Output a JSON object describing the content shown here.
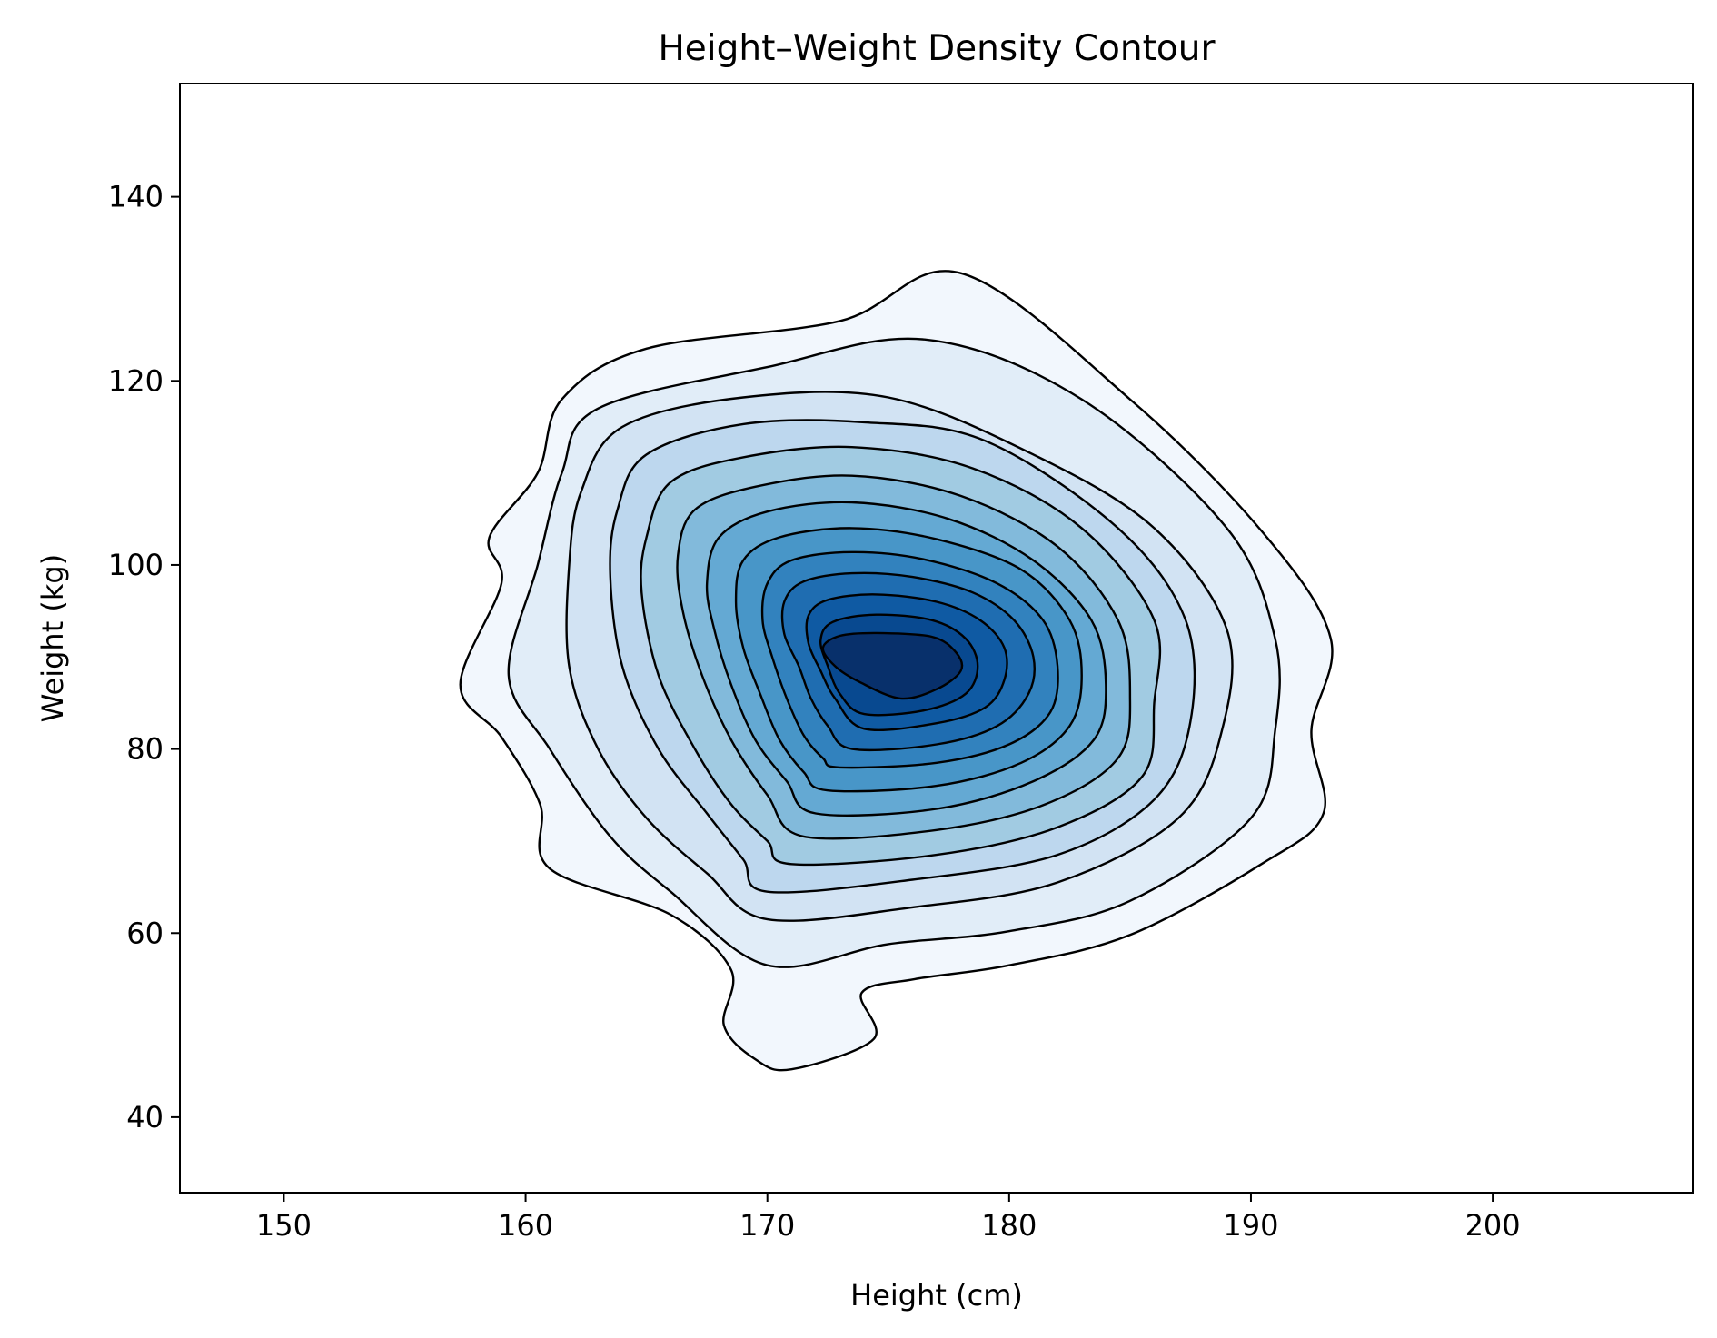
{
  "chart_data": {
    "type": "contour",
    "title": "Height–Weight Density Contour",
    "xlabel": "Height (cm)",
    "ylabel": "Weight (kg)",
    "xlim": [
      145.7,
      208.3
    ],
    "ylim": [
      31.8,
      152.3
    ],
    "xticks": [
      150,
      160,
      170,
      180,
      190,
      200
    ],
    "yticks": [
      40,
      60,
      80,
      100,
      120,
      140
    ],
    "grid": false,
    "legend": "none",
    "colormap": "Blues",
    "line_color": "#000000",
    "fill_colors": [
      "#f2f7fd",
      "#e1edf8",
      "#d2e3f3",
      "#bdd7ee",
      "#a1cbe2",
      "#82badb",
      "#64a9d3",
      "#4896c8",
      "#3282be",
      "#1f6db1",
      "#0f5aa3",
      "#084990",
      "#08306b"
    ],
    "peak": {
      "x": 174.6,
      "y": 89.9
    },
    "levels": [
      {
        "level": 1,
        "outline": [
          [
            171,
            45.2
          ],
          [
            174.4,
            48.5
          ],
          [
            173.9,
            53.5
          ],
          [
            176.1,
            55
          ],
          [
            180,
            56.5
          ],
          [
            185,
            59.8
          ],
          [
            190.5,
            67.6
          ],
          [
            193,
            73
          ],
          [
            192.5,
            82
          ],
          [
            193.3,
            92
          ],
          [
            190.5,
            103.5
          ],
          [
            185,
            118
          ],
          [
            178,
            131.7
          ],
          [
            173,
            126.5
          ],
          [
            165,
            123.5
          ],
          [
            161.5,
            118
          ],
          [
            160.5,
            110
          ],
          [
            158.5,
            103
          ],
          [
            159,
            98
          ],
          [
            157.3,
            87
          ],
          [
            159,
            81.3
          ],
          [
            160.6,
            74
          ],
          [
            161,
            67
          ],
          [
            166,
            62
          ],
          [
            168.5,
            56
          ],
          [
            168.2,
            50
          ],
          [
            169.5,
            46.3
          ]
        ]
      },
      {
        "level": 2,
        "outline": [
          [
            170,
            56.5
          ],
          [
            175,
            58.8
          ],
          [
            180,
            60.2
          ],
          [
            185,
            63.5
          ],
          [
            190,
            72.5
          ],
          [
            191,
            82
          ],
          [
            191,
            92
          ],
          [
            189,
            104
          ],
          [
            183,
            118
          ],
          [
            176.5,
            124.5
          ],
          [
            170,
            121.5
          ],
          [
            163,
            117
          ],
          [
            161.5,
            110
          ],
          [
            160.5,
            100
          ],
          [
            159.3,
            88
          ],
          [
            161,
            80
          ],
          [
            163.5,
            70.5
          ],
          [
            166,
            64.5
          ]
        ]
      },
      {
        "level": 3,
        "outline": [
          [
            170,
            61.5
          ],
          [
            176,
            62.8
          ],
          [
            182,
            65.5
          ],
          [
            187,
            72.5
          ],
          [
            188.8,
            82
          ],
          [
            189,
            93
          ],
          [
            186,
            104
          ],
          [
            181,
            112
          ],
          [
            175,
            118.2
          ],
          [
            169,
            118.2
          ],
          [
            164,
            115
          ],
          [
            162.3,
            108
          ],
          [
            161.8,
            100
          ],
          [
            161.8,
            89
          ],
          [
            163,
            80
          ],
          [
            165,
            72.5
          ],
          [
            167.5,
            66.5
          ]
        ]
      },
      {
        "level": 4,
        "outline": [
          [
            170,
            64.5
          ],
          [
            176,
            65.8
          ],
          [
            182,
            68.5
          ],
          [
            186,
            74.5
          ],
          [
            187.5,
            83
          ],
          [
            187.3,
            94
          ],
          [
            184.5,
            104
          ],
          [
            179,
            113.5
          ],
          [
            174,
            115.5
          ],
          [
            169,
            115.3
          ],
          [
            165,
            112
          ],
          [
            163.8,
            106
          ],
          [
            163.5,
            99
          ],
          [
            164,
            89
          ],
          [
            165.5,
            80
          ],
          [
            167.5,
            73
          ],
          [
            169,
            68
          ]
        ]
      },
      {
        "level": 5,
        "outline": [
          [
            171,
            67.5
          ],
          [
            177,
            68.5
          ],
          [
            182,
            71.5
          ],
          [
            185.5,
            77
          ],
          [
            186,
            85
          ],
          [
            186,
            94
          ],
          [
            183,
            104
          ],
          [
            178.5,
            110.5
          ],
          [
            173.5,
            112.8
          ],
          [
            169,
            111.7
          ],
          [
            166,
            109
          ],
          [
            165,
            103
          ],
          [
            164.8,
            97
          ],
          [
            165.5,
            88
          ],
          [
            167,
            80
          ],
          [
            168.5,
            74
          ],
          [
            170,
            70
          ]
        ]
      },
      {
        "level": 6,
        "outline": [
          [
            171.5,
            70.5
          ],
          [
            177,
            71.2
          ],
          [
            181.5,
            74
          ],
          [
            184.5,
            79
          ],
          [
            185,
            86
          ],
          [
            184.5,
            94
          ],
          [
            182,
            102
          ],
          [
            178,
            107.5
          ],
          [
            173.5,
            109.7
          ],
          [
            169.5,
            108.5
          ],
          [
            167,
            106
          ],
          [
            166.3,
            101
          ],
          [
            166.5,
            95
          ],
          [
            167.3,
            88
          ],
          [
            168.5,
            81
          ],
          [
            170,
            75
          ]
        ]
      },
      {
        "level": 7,
        "outline": [
          [
            172,
            73
          ],
          [
            177,
            73.5
          ],
          [
            181,
            76.5
          ],
          [
            183.5,
            81
          ],
          [
            184,
            87
          ],
          [
            183.4,
            94
          ],
          [
            181,
            100.5
          ],
          [
            177.5,
            105
          ],
          [
            173.5,
            106.8
          ],
          [
            170,
            105.8
          ],
          [
            168,
            103
          ],
          [
            167.5,
            98
          ],
          [
            167.8,
            93
          ],
          [
            168.5,
            87
          ],
          [
            169.5,
            81
          ],
          [
            170.8,
            76.5
          ]
        ]
      },
      {
        "level": 8,
        "outline": [
          [
            172.5,
            75.5
          ],
          [
            177,
            76
          ],
          [
            180.5,
            78.5
          ],
          [
            182.5,
            82.5
          ],
          [
            183,
            88
          ],
          [
            182.5,
            94
          ],
          [
            180.5,
            99.5
          ],
          [
            177,
            102.8
          ],
          [
            173.5,
            104
          ],
          [
            170.5,
            103
          ],
          [
            169,
            100.5
          ],
          [
            168.7,
            96
          ],
          [
            169,
            91
          ],
          [
            169.7,
            86
          ],
          [
            170.5,
            81
          ],
          [
            171.5,
            77.5
          ]
        ]
      },
      {
        "level": 9,
        "outline": [
          [
            173,
            78
          ],
          [
            177,
            78.5
          ],
          [
            180,
            80.5
          ],
          [
            181.7,
            84
          ],
          [
            182,
            89
          ],
          [
            181.4,
            94
          ],
          [
            179.5,
            98
          ],
          [
            176.5,
            100.6
          ],
          [
            173.5,
            101.4
          ],
          [
            171,
            100.5
          ],
          [
            170,
            98
          ],
          [
            169.8,
            94
          ],
          [
            170.2,
            90
          ],
          [
            170.8,
            85.5
          ],
          [
            171.5,
            81.5
          ],
          [
            172.3,
            79
          ]
        ]
      },
      {
        "level": 10,
        "outline": [
          [
            173.5,
            80
          ],
          [
            177,
            80.5
          ],
          [
            179.5,
            82.5
          ],
          [
            180.8,
            86
          ],
          [
            181,
            90
          ],
          [
            180.2,
            94
          ],
          [
            178.5,
            97
          ],
          [
            176,
            98.7
          ],
          [
            173.5,
            99.1
          ],
          [
            171.5,
            98.2
          ],
          [
            170.7,
            96
          ],
          [
            170.7,
            92.5
          ],
          [
            171.3,
            89
          ],
          [
            171.8,
            85.5
          ],
          [
            172.5,
            82.5
          ]
        ]
      },
      {
        "level": 11,
        "outline": [
          [
            174,
            82.2
          ],
          [
            177,
            82.8
          ],
          [
            179,
            84.5
          ],
          [
            179.8,
            87.5
          ],
          [
            179.8,
            91
          ],
          [
            178.8,
            94
          ],
          [
            177,
            96
          ],
          [
            174.5,
            96.8
          ],
          [
            172.5,
            96.2
          ],
          [
            171.7,
            94.5
          ],
          [
            171.7,
            91.5
          ],
          [
            172.2,
            88.5
          ],
          [
            172.8,
            85.5
          ]
        ]
      },
      {
        "level": 12,
        "outline": [
          [
            174,
            83.8
          ],
          [
            176.5,
            84.2
          ],
          [
            178.2,
            86
          ],
          [
            178.7,
            89
          ],
          [
            178.2,
            92
          ],
          [
            176.8,
            94
          ],
          [
            174.5,
            94.6
          ],
          [
            172.7,
            93.8
          ],
          [
            172.2,
            91.8
          ],
          [
            172.5,
            89
          ],
          [
            173,
            86
          ]
        ]
      },
      {
        "level": 13,
        "outline": [
          [
            175.5,
            85.5
          ],
          [
            177,
            86.5
          ],
          [
            178,
            88.5
          ],
          [
            177.8,
            90.5
          ],
          [
            176.8,
            92.2
          ],
          [
            174.5,
            92.6
          ],
          [
            173,
            92.3
          ],
          [
            172.3,
            91
          ],
          [
            172.8,
            89
          ],
          [
            173.8,
            87.3
          ]
        ]
      }
    ]
  }
}
